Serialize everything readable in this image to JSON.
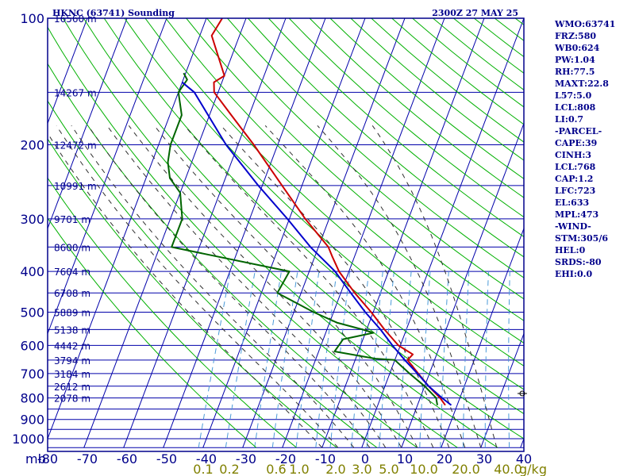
{
  "chart_data": {
    "type": "line",
    "title": "HKNC (63741) Sounding",
    "datetime": "2300Z 27 MAY 25",
    "pressure_ticks": [
      100,
      200,
      300,
      400,
      500,
      600,
      700,
      800,
      900,
      1000
    ],
    "pressure_unit": "mb",
    "temperature_ticks": [
      "-80",
      "-70",
      "-60",
      "-50",
      "-40",
      "-30",
      "-20",
      "-10",
      "0",
      "10",
      "20",
      "30",
      "40"
    ],
    "xlim": [
      -80,
      40
    ],
    "ylim": [
      1000,
      100
    ],
    "mixing_ratio_labels": [
      "0.1",
      "0.2",
      "0.6",
      "1.0",
      "2.0",
      "3.0",
      "5.0",
      "10.0",
      "20.0",
      "40.0"
    ],
    "mixing_ratio_unit": "g/kg",
    "height_labels": [
      {
        "p": 100,
        "label": "16560 m"
      },
      {
        "p": 150,
        "label": "14267 m"
      },
      {
        "p": 200,
        "label": "12472 m"
      },
      {
        "p": 250,
        "label": "10991 m"
      },
      {
        "p": 300,
        "label": "9701 m"
      },
      {
        "p": 350,
        "label": "8600 m"
      },
      {
        "p": 400,
        "label": "7604 m"
      },
      {
        "p": 450,
        "label": "6708 m"
      },
      {
        "p": 500,
        "label": "5889 m"
      },
      {
        "p": 550,
        "label": "5138 m"
      },
      {
        "p": 600,
        "label": "4442 m"
      },
      {
        "p": 650,
        "label": "3794 m"
      },
      {
        "p": 700,
        "label": "3184 m"
      },
      {
        "p": 750,
        "label": "2612 m"
      },
      {
        "p": 800,
        "label": "2078 m"
      }
    ],
    "series": [
      {
        "color": "#cc0000",
        "points": [
          {
            "p": 832,
            "t": 17.0
          },
          {
            "p": 800,
            "t": 15.0
          },
          {
            "p": 750,
            "t": 11.0
          },
          {
            "p": 700,
            "t": 7.2
          },
          {
            "p": 650,
            "t": 3.2
          },
          {
            "p": 630,
            "t": 4.0
          },
          {
            "p": 600,
            "t": -0.5
          },
          {
            "p": 550,
            "t": -5.5
          },
          {
            "p": 500,
            "t": -10.5
          },
          {
            "p": 450,
            "t": -16.5
          },
          {
            "p": 400,
            "t": -22.5
          },
          {
            "p": 370,
            "t": -25.5
          },
          {
            "p": 350,
            "t": -27.5
          },
          {
            "p": 300,
            "t": -36.0
          },
          {
            "p": 250,
            "t": -45.0
          },
          {
            "p": 200,
            "t": -56.0
          },
          {
            "p": 170,
            "t": -64.5
          },
          {
            "p": 150,
            "t": -71.0
          },
          {
            "p": 142,
            "t": -72.0
          },
          {
            "p": 137,
            "t": -70.0
          },
          {
            "p": 110,
            "t": -77.0
          },
          {
            "p": 100,
            "t": -76.0
          }
        ]
      },
      {
        "color": "#006400",
        "points": [
          {
            "p": 832,
            "t": 15.0
          },
          {
            "p": 800,
            "t": 14.0
          },
          {
            "p": 750,
            "t": 10.0
          },
          {
            "p": 700,
            "t": 5.0
          },
          {
            "p": 650,
            "t": 0.0
          },
          {
            "p": 645,
            "t": -5.0
          },
          {
            "p": 620,
            "t": -16.0
          },
          {
            "p": 580,
            "t": -15.0
          },
          {
            "p": 560,
            "t": -8.0
          },
          {
            "p": 550,
            "t": -11.0
          },
          {
            "p": 530,
            "t": -18.0
          },
          {
            "p": 500,
            "t": -25.0
          },
          {
            "p": 450,
            "t": -36.0
          },
          {
            "p": 400,
            "t": -35.0
          },
          {
            "p": 350,
            "t": -67.0
          },
          {
            "p": 300,
            "t": -67.0
          },
          {
            "p": 260,
            "t": -70.0
          },
          {
            "p": 240,
            "t": -74.0
          },
          {
            "p": 220,
            "t": -76.0
          },
          {
            "p": 200,
            "t": -77.0
          },
          {
            "p": 170,
            "t": -77.0
          },
          {
            "p": 150,
            "t": -80.0
          },
          {
            "p": 140,
            "t": -79.0
          },
          {
            "p": 135,
            "t": -80.5
          }
        ]
      },
      {
        "color": "#0000cc",
        "points": [
          {
            "p": 832,
            "t": 18.5
          },
          {
            "p": 800,
            "t": 15.5
          },
          {
            "p": 750,
            "t": 11.0
          },
          {
            "p": 700,
            "t": 7.0
          },
          {
            "p": 650,
            "t": 2.5
          },
          {
            "p": 600,
            "t": -2.0
          },
          {
            "p": 550,
            "t": -6.5
          },
          {
            "p": 500,
            "t": -12.0
          },
          {
            "p": 450,
            "t": -17.5
          },
          {
            "p": 400,
            "t": -23.5
          },
          {
            "p": 350,
            "t": -32.0
          },
          {
            "p": 300,
            "t": -40.5
          },
          {
            "p": 250,
            "t": -51.0
          },
          {
            "p": 200,
            "t": -63.0
          },
          {
            "p": 150,
            "t": -76.0
          },
          {
            "p": 142,
            "t": -80.0
          }
        ]
      }
    ]
  },
  "info": [
    "WMO:63741",
    "FRZ:580",
    "WB0:624",
    "PW:1.04",
    "RH:77.5",
    "MAXT:22.8",
    "L57:5.0",
    "LCL:808",
    "LI:0.7",
    "-PARCEL-",
    "CAPE:39",
    "CINH:3",
    "LCL:768",
    "CAP:1.2",
    "LFC:723",
    "EL:633",
    "MPL:473",
    "-WIND-",
    "STM:305/6",
    "HEL:0",
    "SRDS:-80",
    "EHI:0.0"
  ],
  "colors": {
    "frame": "#00008b",
    "isotherm": "#0000aa",
    "dry_adiabat": "#00b000",
    "moist_adiabat": "#303030",
    "mixing_ratio": "#4a9ad8",
    "temperature": "#cc0000",
    "dewpoint": "#006400",
    "parcel": "#0000cc"
  }
}
